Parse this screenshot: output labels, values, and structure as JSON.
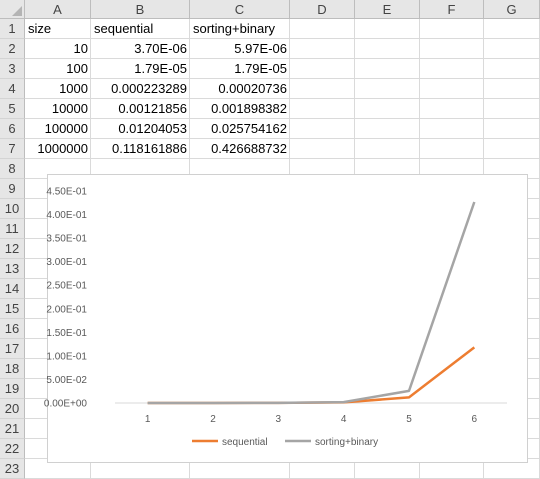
{
  "sheet": {
    "columns": [
      "A",
      "B",
      "C",
      "D",
      "E",
      "F",
      "G"
    ],
    "rows": [
      "1",
      "2",
      "3",
      "4",
      "5",
      "6",
      "7",
      "8",
      "9",
      "10",
      "11",
      "12",
      "13",
      "14",
      "15",
      "16",
      "17",
      "18",
      "19",
      "20",
      "21",
      "22",
      "23"
    ],
    "headers": [
      "size",
      "sequential",
      "sorting+binary"
    ],
    "data_rows": [
      [
        "10",
        "3.70E-06",
        "5.97E-06"
      ],
      [
        "100",
        "1.79E-05",
        "1.79E-05"
      ],
      [
        "1000",
        "0.000223289",
        "0.00020736"
      ],
      [
        "10000",
        "0.00121856",
        "0.001898382"
      ],
      [
        "100000",
        "0.01204053",
        "0.025754162"
      ],
      [
        "1000000",
        "0.118161886",
        "0.426688732"
      ]
    ]
  },
  "chart_data": {
    "type": "line",
    "categories": [
      "1",
      "2",
      "3",
      "4",
      "5",
      "6"
    ],
    "series": [
      {
        "name": "sequential",
        "color": "#ed7d31",
        "values": [
          3.7e-06,
          1.79e-05,
          0.000223289,
          0.00121856,
          0.01204053,
          0.118161886
        ]
      },
      {
        "name": "sorting+binary",
        "color": "#a5a5a5",
        "values": [
          5.97e-06,
          1.79e-05,
          0.00020736,
          0.001898382,
          0.025754162,
          0.426688732
        ]
      }
    ],
    "ylim": [
      0,
      0.45
    ],
    "yticks": [
      "0.00E+00",
      "5.00E-02",
      "1.00E-01",
      "1.50E-01",
      "2.00E-01",
      "2.50E-01",
      "3.00E-01",
      "3.50E-01",
      "4.00E-01",
      "4.50E-01"
    ],
    "ytick_values": [
      0,
      0.05,
      0.1,
      0.15,
      0.2,
      0.25,
      0.3,
      0.35,
      0.4,
      0.45
    ],
    "legend": "bottom",
    "grid": false
  }
}
